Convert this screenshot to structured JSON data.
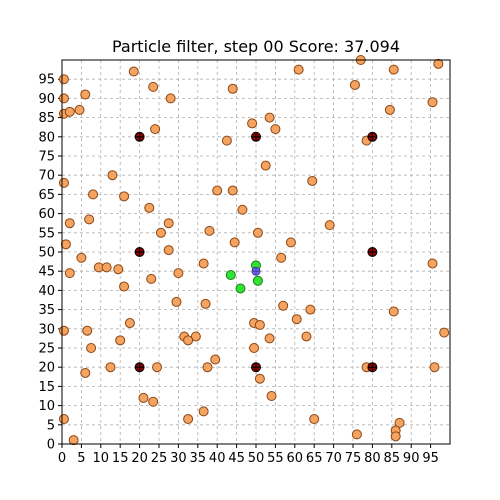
{
  "chart_data": {
    "type": "scatter",
    "title": "Particle filter, step 00 Score: 37.094",
    "xlabel": "",
    "ylabel": "",
    "xlim": [
      0,
      100
    ],
    "ylim": [
      0,
      100
    ],
    "grid": true,
    "x_ticks": [
      0,
      5,
      10,
      15,
      20,
      25,
      30,
      35,
      40,
      45,
      50,
      55,
      60,
      65,
      70,
      75,
      80,
      85,
      90,
      95
    ],
    "y_ticks": [
      0,
      5,
      10,
      15,
      20,
      25,
      30,
      35,
      40,
      45,
      50,
      55,
      60,
      65,
      70,
      75,
      80,
      85,
      90,
      95
    ],
    "series": [
      {
        "role": "particles",
        "color": "#f4a460",
        "points": [
          [
            0.5,
            95
          ],
          [
            0.5,
            90
          ],
          [
            0.5,
            86
          ],
          [
            2,
            86.5
          ],
          [
            4.5,
            87
          ],
          [
            6,
            91
          ],
          [
            18.5,
            97
          ],
          [
            23.5,
            93
          ],
          [
            28,
            90
          ],
          [
            44,
            92.5
          ],
          [
            61,
            97.5
          ],
          [
            75.5,
            93.5
          ],
          [
            77,
            100
          ],
          [
            85.5,
            97.5
          ],
          [
            97,
            99
          ],
          [
            95.5,
            89
          ],
          [
            84.5,
            87
          ],
          [
            24,
            82
          ],
          [
            42.5,
            79
          ],
          [
            49,
            83.5
          ],
          [
            53.5,
            85
          ],
          [
            55,
            82
          ],
          [
            78.5,
            79
          ],
          [
            52.5,
            72.5
          ],
          [
            13,
            70
          ],
          [
            0.5,
            68
          ],
          [
            64.5,
            68.5
          ],
          [
            8,
            65
          ],
          [
            16,
            64.5
          ],
          [
            40,
            66
          ],
          [
            44,
            66
          ],
          [
            46.5,
            61
          ],
          [
            22.5,
            61.5
          ],
          [
            2,
            57.5
          ],
          [
            7,
            58.5
          ],
          [
            27.5,
            57.5
          ],
          [
            25.5,
            55
          ],
          [
            38,
            55.5
          ],
          [
            50.5,
            55
          ],
          [
            69,
            57
          ],
          [
            1,
            52
          ],
          [
            44.5,
            52.5
          ],
          [
            59,
            52.5
          ],
          [
            27.5,
            50.5
          ],
          [
            5,
            48.5
          ],
          [
            56.5,
            48.5
          ],
          [
            36.5,
            47
          ],
          [
            95.5,
            47
          ],
          [
            2,
            44.5
          ],
          [
            9.5,
            46
          ],
          [
            11.5,
            46
          ],
          [
            14.5,
            45.5
          ],
          [
            30,
            44.5
          ],
          [
            23,
            43
          ],
          [
            16,
            41
          ],
          [
            29.5,
            37
          ],
          [
            37,
            36.5
          ],
          [
            57,
            36
          ],
          [
            64,
            35
          ],
          [
            85.5,
            34.5
          ],
          [
            60.5,
            32.5
          ],
          [
            17.5,
            31.5
          ],
          [
            49.5,
            31.5
          ],
          [
            51,
            31
          ],
          [
            0.5,
            29.5
          ],
          [
            6.5,
            29.5
          ],
          [
            98.5,
            29
          ],
          [
            31.5,
            28
          ],
          [
            34.5,
            28
          ],
          [
            32.5,
            27
          ],
          [
            53.5,
            27.5
          ],
          [
            63,
            28
          ],
          [
            15,
            27
          ],
          [
            7.5,
            25
          ],
          [
            49.5,
            25
          ],
          [
            39.5,
            22
          ],
          [
            12.5,
            20
          ],
          [
            24.5,
            20
          ],
          [
            37.5,
            20
          ],
          [
            78.5,
            20
          ],
          [
            96,
            20
          ],
          [
            6,
            18.5
          ],
          [
            51,
            17
          ],
          [
            54,
            12.5
          ],
          [
            21,
            12
          ],
          [
            23.5,
            11
          ],
          [
            36.5,
            8.5
          ],
          [
            32.5,
            6.5
          ],
          [
            65,
            6.5
          ],
          [
            0.5,
            6.5
          ],
          [
            87,
            5.5
          ],
          [
            86,
            3.5
          ],
          [
            76,
            2.5
          ],
          [
            86,
            2
          ],
          [
            3,
            1
          ]
        ]
      },
      {
        "role": "landmarks",
        "color": "#8b0000",
        "points": [
          [
            20,
            80
          ],
          [
            50,
            80
          ],
          [
            80,
            80
          ],
          [
            20,
            50
          ],
          [
            80,
            50
          ],
          [
            20,
            20
          ],
          [
            50,
            20
          ],
          [
            80,
            20
          ]
        ]
      },
      {
        "role": "best_particles",
        "color": "#32e432",
        "points": [
          [
            50,
            46.5
          ],
          [
            43.5,
            44
          ],
          [
            50.5,
            42.5
          ],
          [
            46,
            40.5
          ]
        ]
      },
      {
        "role": "robot",
        "color": "#7b68ee",
        "points": [
          [
            50,
            45
          ]
        ]
      }
    ]
  }
}
